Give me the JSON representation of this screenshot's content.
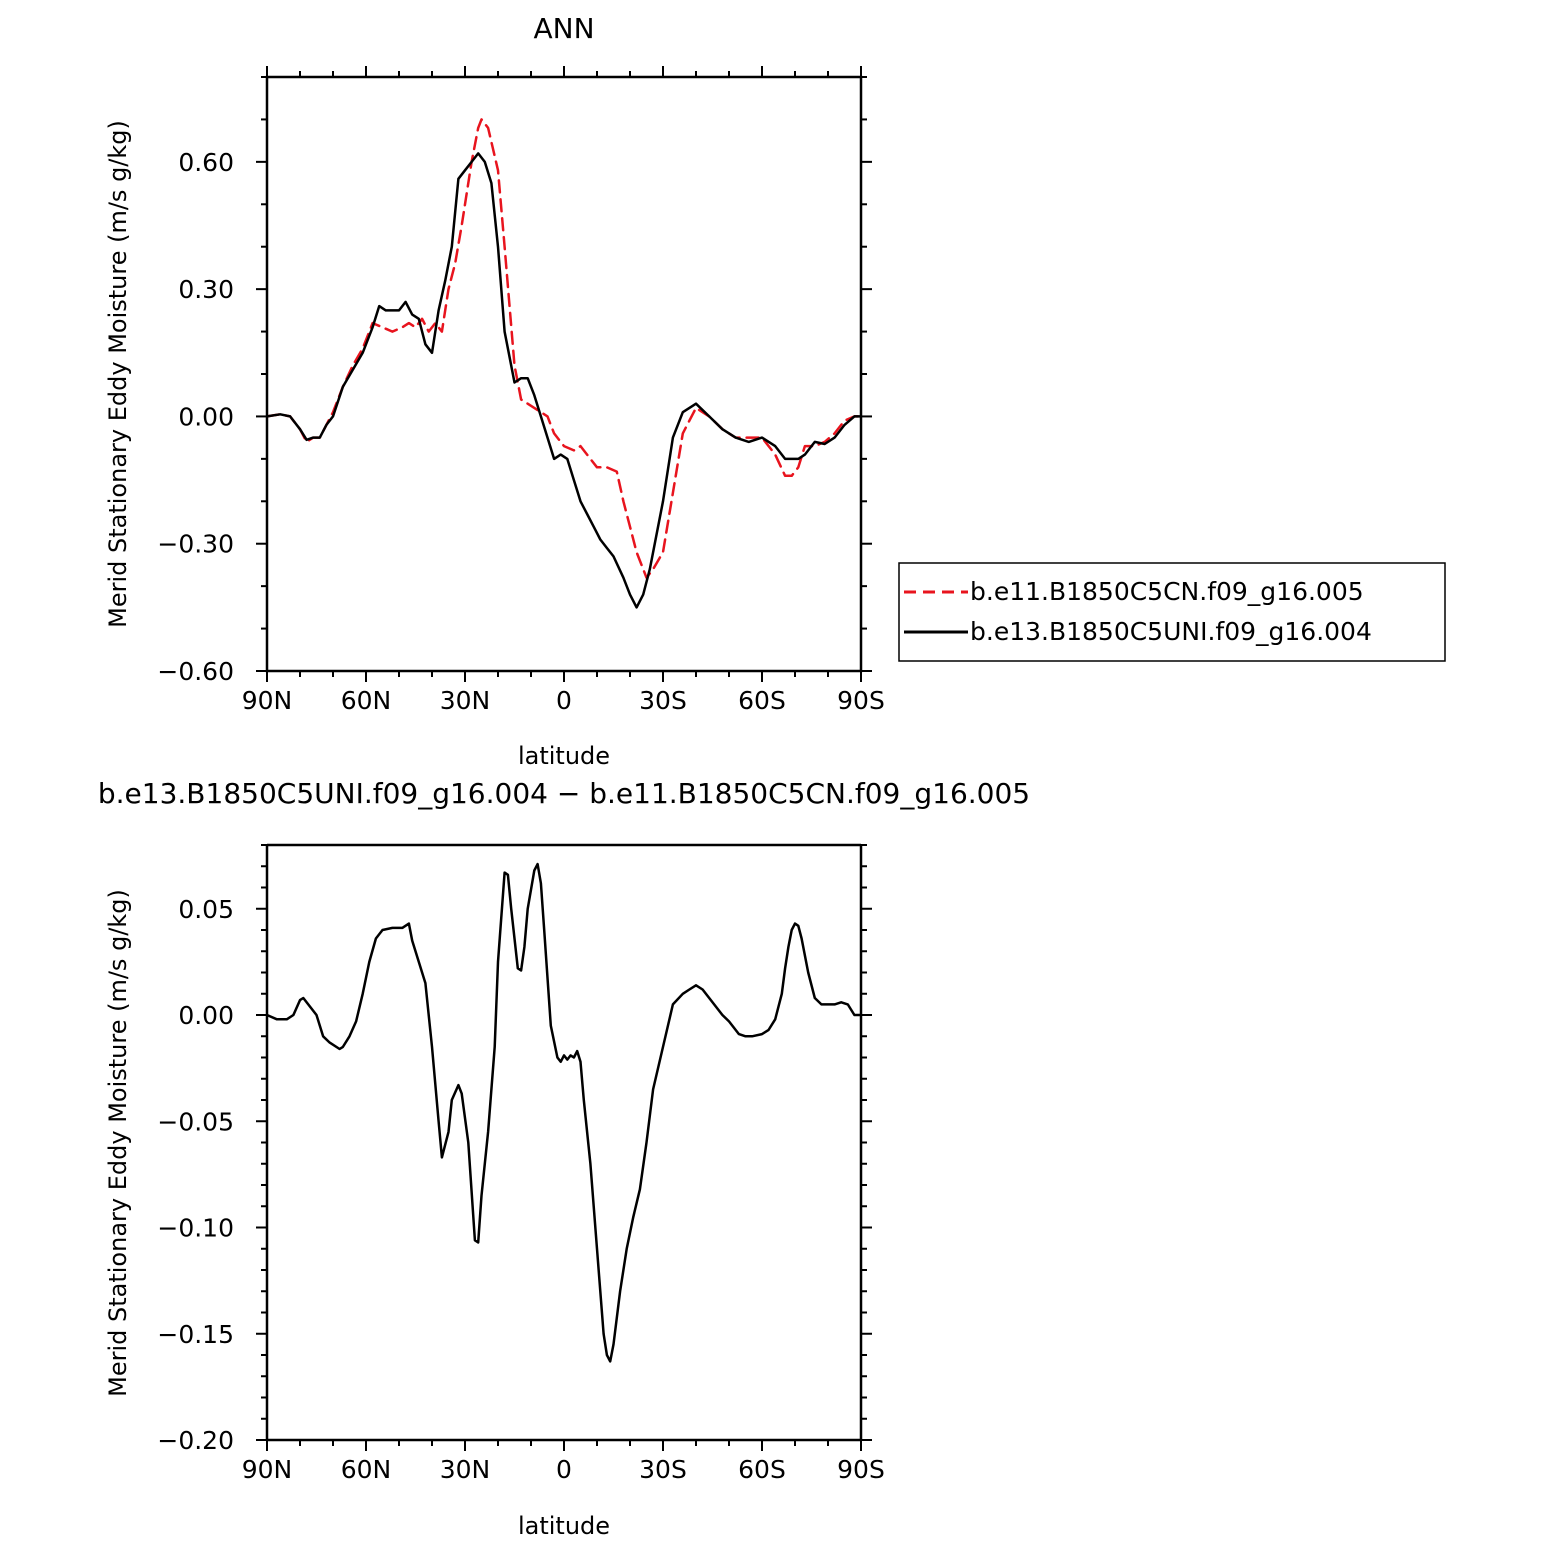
{
  "chart_data": [
    {
      "type": "line",
      "title": "ANN",
      "xlabel": "latitude",
      "ylabel": "Merid Stationary Eddy Moisture (m/s g/kg)",
      "x_ticks": [
        90,
        60,
        30,
        0,
        -30,
        -60,
        -90
      ],
      "x_tick_labels": [
        "90N",
        "60N",
        "30N",
        "0",
        "30S",
        "60S",
        "90S"
      ],
      "xlim": [
        90,
        -90
      ],
      "ylim": [
        -0.6,
        0.8
      ],
      "y_ticks": [
        0.6,
        0.3,
        0.0,
        -0.3,
        -0.6
      ],
      "y_tick_labels": [
        "0.60",
        "0.30",
        "0.00",
        "−0.30",
        "−0.60"
      ],
      "legend": {
        "position": "right"
      },
      "series": [
        {
          "name": "b.e11.B1850C5CN.f09_g16.005",
          "color": "#e8141e",
          "dash": "dashed",
          "x": [
            90,
            86,
            83,
            80,
            78,
            76,
            74,
            72,
            70,
            67,
            64,
            61,
            58,
            55,
            52,
            49,
            47,
            45,
            43,
            41,
            39,
            37,
            35,
            33,
            31,
            28,
            26,
            25,
            23,
            20,
            18,
            15,
            13,
            11,
            9,
            7,
            5,
            3,
            1,
            0,
            -3,
            -5,
            -8,
            -10,
            -13,
            -16,
            -18,
            -20,
            -22,
            -25,
            -27,
            -30,
            -33,
            -36,
            -40,
            -44,
            -48,
            -52,
            -56,
            -60,
            -64,
            -67,
            -69,
            -71,
            -73,
            -76,
            -79,
            -82,
            -85,
            -88,
            -90
          ],
          "y": [
            0.0,
            0.005,
            0.0,
            -0.03,
            -0.06,
            -0.05,
            -0.05,
            -0.02,
            0.01,
            0.07,
            0.12,
            0.16,
            0.22,
            0.21,
            0.2,
            0.21,
            0.22,
            0.21,
            0.23,
            0.2,
            0.22,
            0.2,
            0.3,
            0.36,
            0.45,
            0.6,
            0.68,
            0.7,
            0.68,
            0.58,
            0.4,
            0.12,
            0.04,
            0.03,
            0.02,
            0.01,
            0.0,
            -0.04,
            -0.06,
            -0.07,
            -0.08,
            -0.07,
            -0.1,
            -0.12,
            -0.12,
            -0.13,
            -0.2,
            -0.26,
            -0.32,
            -0.38,
            -0.36,
            -0.32,
            -0.18,
            -0.04,
            0.02,
            0.0,
            -0.03,
            -0.05,
            -0.05,
            -0.05,
            -0.09,
            -0.14,
            -0.14,
            -0.12,
            -0.07,
            -0.07,
            -0.06,
            -0.04,
            -0.01,
            0.0,
            0.0
          ]
        },
        {
          "name": "b.e13.B1850C5UNI.f09_g16.004",
          "color": "#000000",
          "dash": "solid",
          "x": [
            90,
            86,
            83,
            80,
            78,
            76,
            74,
            72,
            70,
            67,
            64,
            61,
            58,
            56,
            54,
            52,
            50,
            48,
            46,
            44,
            42,
            40,
            38,
            36,
            34,
            32,
            30,
            28,
            26,
            24,
            22,
            20,
            18,
            15,
            13,
            11,
            9,
            7,
            5,
            3,
            1,
            -1,
            -3,
            -5,
            -7,
            -9,
            -11,
            -13,
            -15,
            -18,
            -20,
            -22,
            -24,
            -26,
            -28,
            -30,
            -33,
            -36,
            -40,
            -44,
            -48,
            -52,
            -56,
            -60,
            -64,
            -67,
            -69,
            -71,
            -73,
            -76,
            -79,
            -82,
            -85,
            -88,
            -90
          ],
          "y": [
            0.0,
            0.005,
            0.0,
            -0.03,
            -0.055,
            -0.05,
            -0.05,
            -0.02,
            0.0,
            0.07,
            0.11,
            0.15,
            0.21,
            0.26,
            0.25,
            0.25,
            0.25,
            0.27,
            0.24,
            0.23,
            0.17,
            0.15,
            0.25,
            0.32,
            0.4,
            0.56,
            0.58,
            0.6,
            0.62,
            0.6,
            0.55,
            0.4,
            0.2,
            0.08,
            0.09,
            0.09,
            0.05,
            0.0,
            -0.05,
            -0.1,
            -0.09,
            -0.1,
            -0.15,
            -0.2,
            -0.23,
            -0.26,
            -0.29,
            -0.31,
            -0.33,
            -0.38,
            -0.42,
            -0.45,
            -0.42,
            -0.36,
            -0.28,
            -0.2,
            -0.05,
            0.01,
            0.03,
            0.0,
            -0.03,
            -0.05,
            -0.06,
            -0.05,
            -0.07,
            -0.1,
            -0.1,
            -0.1,
            -0.09,
            -0.06,
            -0.065,
            -0.05,
            -0.02,
            0.0,
            0.0
          ]
        }
      ]
    },
    {
      "type": "line",
      "title": "b.e13.B1850C5UNI.f09_g16.004 − b.e11.B1850C5CN.f09_g16.005",
      "xlabel": "latitude",
      "ylabel": "Merid Stationary Eddy Moisture (m/s g/kg)",
      "x_ticks": [
        90,
        60,
        30,
        0,
        -30,
        -60,
        -90
      ],
      "x_tick_labels": [
        "90N",
        "60N",
        "30N",
        "0",
        "30S",
        "60S",
        "90S"
      ],
      "xlim": [
        90,
        -90
      ],
      "ylim": [
        -0.2,
        0.08
      ],
      "y_ticks": [
        0.05,
        0.0,
        -0.05,
        -0.1,
        -0.15,
        -0.2
      ],
      "y_tick_labels": [
        "0.05",
        "0.00",
        "−0.05",
        "−0.10",
        "−0.15",
        "−0.20"
      ],
      "series": [
        {
          "color": "#000000",
          "dash": "solid",
          "x": [
            90,
            87,
            84,
            82,
            80,
            79,
            77,
            75,
            73,
            71,
            68,
            67,
            65,
            63,
            61,
            59,
            57,
            55,
            52,
            49,
            47,
            46,
            44,
            42,
            40,
            38,
            37,
            35,
            34,
            32,
            31,
            29,
            27,
            26,
            25,
            23,
            21,
            20,
            18,
            17,
            16,
            14,
            13,
            12,
            11,
            9,
            8,
            7,
            6,
            4,
            2,
            1,
            0,
            -1,
            -2,
            -3,
            -4,
            -5,
            -6,
            -8,
            -10,
            -12,
            -13,
            -14,
            -15,
            -17,
            -19,
            -21,
            -23,
            -25,
            -27,
            -30,
            -33,
            -36,
            -38,
            -40,
            -42,
            -44,
            -46,
            -48,
            -50,
            -53,
            -55,
            -57,
            -60,
            -62,
            -64,
            -66,
            -67,
            -68,
            -69,
            -70,
            -71,
            -72,
            -74,
            -76,
            -78,
            -80,
            -82,
            -84,
            -86,
            -88,
            -90
          ],
          "y": [
            0.0,
            -0.002,
            -0.002,
            0.0,
            0.007,
            0.008,
            0.004,
            0.0,
            -0.01,
            -0.013,
            -0.016,
            -0.015,
            -0.01,
            -0.003,
            0.01,
            0.025,
            0.036,
            0.04,
            0.041,
            0.041,
            0.043,
            0.035,
            0.025,
            0.015,
            -0.015,
            -0.05,
            -0.067,
            -0.055,
            -0.04,
            -0.033,
            -0.037,
            -0.06,
            -0.106,
            -0.107,
            -0.085,
            -0.055,
            -0.015,
            0.025,
            0.067,
            0.066,
            0.05,
            0.022,
            0.021,
            0.032,
            0.05,
            0.068,
            0.071,
            0.062,
            0.04,
            -0.005,
            -0.02,
            -0.022,
            -0.019,
            -0.021,
            -0.019,
            -0.02,
            -0.017,
            -0.022,
            -0.04,
            -0.07,
            -0.11,
            -0.15,
            -0.16,
            -0.163,
            -0.155,
            -0.13,
            -0.11,
            -0.095,
            -0.082,
            -0.06,
            -0.035,
            -0.015,
            0.005,
            0.01,
            0.012,
            0.014,
            0.012,
            0.008,
            0.004,
            0.0,
            -0.003,
            -0.009,
            -0.01,
            -0.01,
            -0.009,
            -0.007,
            -0.002,
            0.01,
            0.022,
            0.032,
            0.04,
            0.043,
            0.042,
            0.036,
            0.02,
            0.008,
            0.005,
            0.005,
            0.005,
            0.006,
            0.005,
            0.0,
            0.0
          ]
        }
      ]
    }
  ]
}
